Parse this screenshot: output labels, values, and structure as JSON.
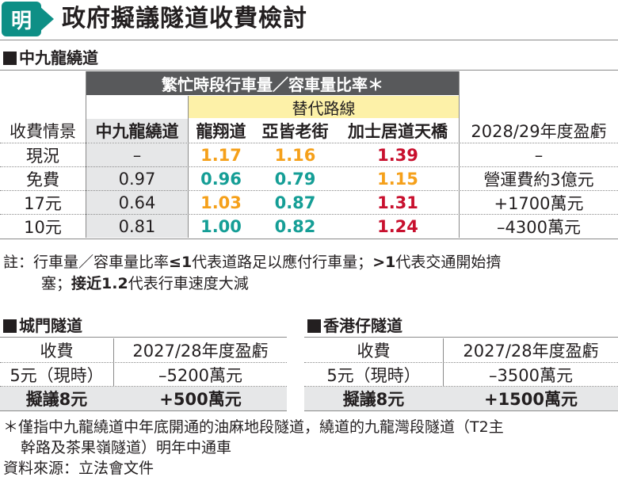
{
  "logo": {
    "char": "明",
    "icon": "ming-pao-logo-icon"
  },
  "headline": "政府擬議隧道收費檢討",
  "central": {
    "section_title": "中九龍繞道",
    "ratio_header": "繁忙時段行車量／容車量比率＊",
    "alt_routes_header": "替代路線",
    "columns": [
      "收費情景",
      "中九龍繞道",
      "龍翔道",
      "亞皆老街",
      "加士居道天橋",
      "2028/29年度盈虧"
    ],
    "rows": [
      {
        "scenario": "現況",
        "main": "–",
        "r1": "1.17",
        "r1c": "orange",
        "r2": "1.16",
        "r2c": "orange",
        "r3": "1.39",
        "r3c": "red",
        "profit": "–"
      },
      {
        "scenario": "免費",
        "main": "0.97",
        "r1": "0.96",
        "r1c": "teal",
        "r2": "0.79",
        "r2c": "teal",
        "r3": "1.15",
        "r3c": "orange",
        "profit": "營運費約3億元"
      },
      {
        "scenario": "17元",
        "main": "0.64",
        "r1": "1.03",
        "r1c": "orange",
        "r2": "0.87",
        "r2c": "teal",
        "r3": "1.31",
        "r3c": "red",
        "profit": "+1700萬元"
      },
      {
        "scenario": "10元",
        "main": "0.81",
        "r1": "1.00",
        "r1c": "teal",
        "r2": "0.82",
        "r2c": "teal",
        "r3": "1.24",
        "r3c": "red",
        "profit": "–4300萬元"
      }
    ],
    "colors": {
      "orange": "#f5a01a",
      "teal": "#159e96",
      "red": "#c8102e"
    }
  },
  "note": {
    "label": "註：",
    "text1": "行車量／容車量比率",
    "le1": "≤1",
    "text2": "代表道路足以應付行車量；",
    "gt1": ">1",
    "text3": "代表交通開始擠",
    "text4": "塞；",
    "near": "接近1.2",
    "text5": "代表行車速度大減"
  },
  "shing_mun": {
    "section_title": "城門隧道",
    "columns": [
      "收費",
      "2027/28年度盈虧"
    ],
    "rows": [
      {
        "fee": "5元（現時）",
        "profit": "–5200萬元"
      },
      {
        "fee": "擬議8元",
        "profit": "+500萬元"
      }
    ]
  },
  "aberdeen": {
    "section_title": "香港仔隧道",
    "columns": [
      "收費",
      "2027/28年度盈虧"
    ],
    "rows": [
      {
        "fee": "5元（現時）",
        "profit": "–3500萬元"
      },
      {
        "fee": "擬議8元",
        "profit": "+1500萬元"
      }
    ]
  },
  "footnote": {
    "line1": "＊僅指中九龍繞道中年底開通的油麻地段隧道，繞道的九龍灣段隧道（T2主",
    "line2": "幹路及茶果嶺隧道）明年中通車",
    "source": "資料來源：立法會文件"
  }
}
